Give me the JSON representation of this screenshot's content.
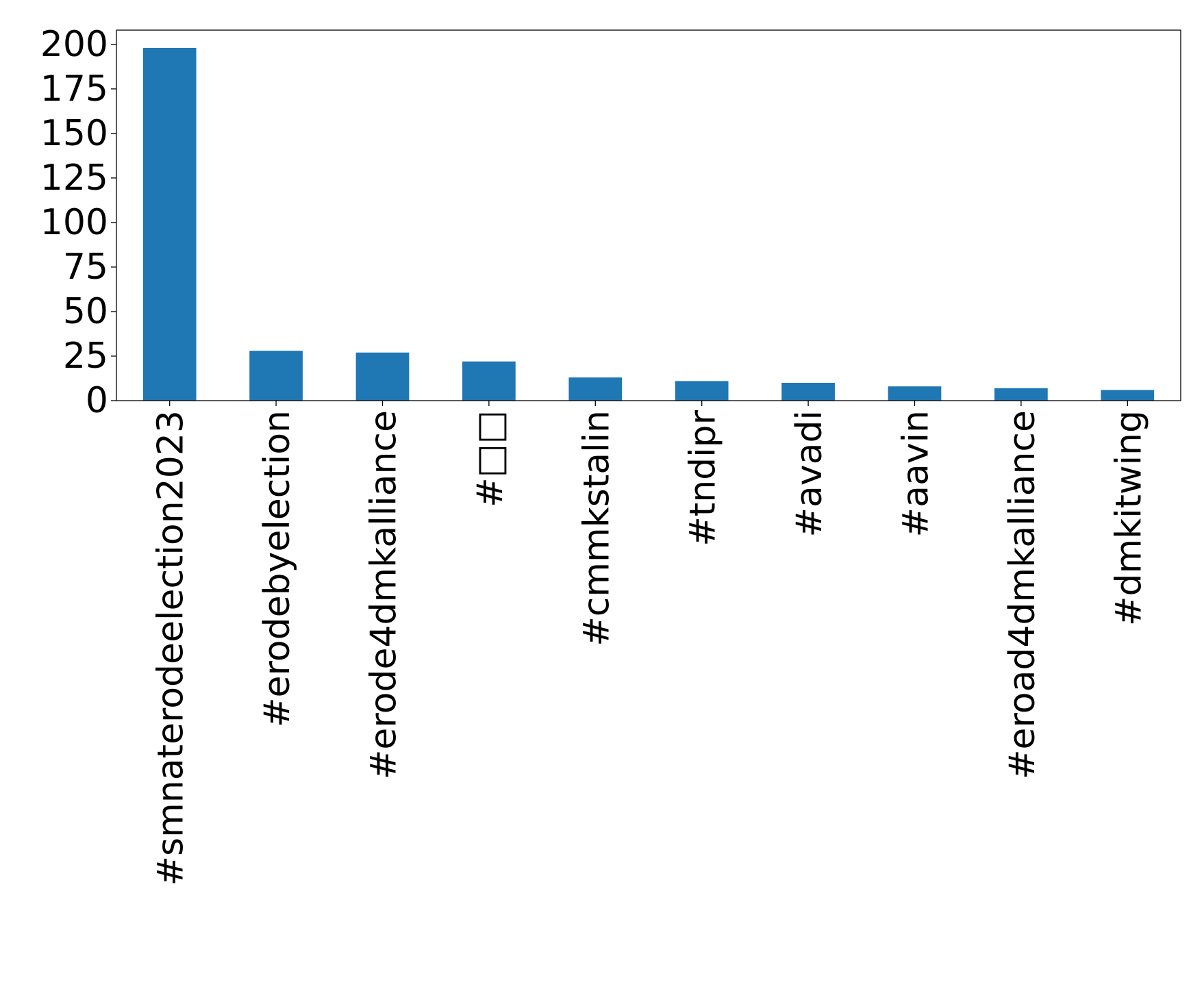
{
  "chart_data": {
    "type": "bar",
    "title": "",
    "xlabel": "",
    "ylabel": "",
    "categories": [
      "#smnaterodeelection2023",
      "#erodebyelection",
      "#erode4dmkalliance",
      "#□□",
      "#cmmkstalin",
      "#tndipr",
      "#avadi",
      "#aavin",
      "#eroad4dmkalliance",
      "#dmkitwing"
    ],
    "values": [
      198,
      28,
      27,
      22,
      13,
      11,
      10,
      8,
      7,
      6
    ],
    "ylim": [
      0,
      208
    ],
    "yticks": [
      0,
      25,
      50,
      75,
      100,
      125,
      150,
      175,
      200
    ],
    "bar_color": "#1f77b4",
    "grid": false,
    "legend": "none"
  }
}
